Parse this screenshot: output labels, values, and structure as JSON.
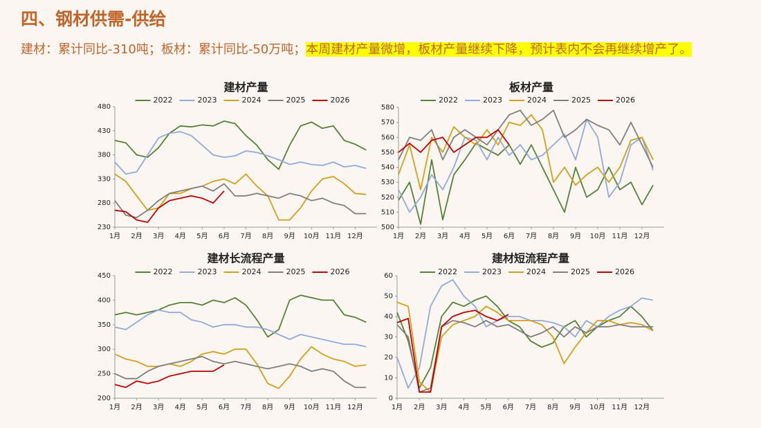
{
  "header": {
    "title": "四、钢材供需-供给",
    "subtitle_plain": "建材：累计同比-310吨；板材：累计同比-50万吨；",
    "subtitle_highlight": "本周建材产量微增，板材产量继续下降，预计表内不会再继续增产了。"
  },
  "chart_data": [
    {
      "type": "line",
      "title": "建材产量",
      "x": [
        1,
        1.5,
        2,
        2.5,
        3,
        3.5,
        4,
        4.5,
        5,
        5.5,
        6,
        6.5,
        7,
        7.5,
        8,
        8.5,
        9,
        9.5,
        10,
        10.5,
        11,
        11.5,
        12,
        12.5
      ],
      "xlim": [
        1,
        13
      ],
      "xticks": [
        {
          "value": 1,
          "label": "1月"
        },
        {
          "value": 2,
          "label": "2月"
        },
        {
          "value": 3,
          "label": "3月"
        },
        {
          "value": 4,
          "label": "4月"
        },
        {
          "value": 5,
          "label": "5月"
        },
        {
          "value": 6,
          "label": "6月"
        },
        {
          "value": 7,
          "label": "7月"
        },
        {
          "value": 8,
          "label": "8月"
        },
        {
          "value": 9,
          "label": "9月"
        },
        {
          "value": 10,
          "label": "10月"
        },
        {
          "value": 11,
          "label": "11月"
        },
        {
          "value": 12,
          "label": "12月"
        }
      ],
      "ylim": [
        230,
        480
      ],
      "yticks": [
        230,
        280,
        330,
        380,
        430,
        480
      ],
      "series": [
        {
          "name": "2022",
          "color": "#548235",
          "values": [
            410,
            405,
            380,
            375,
            395,
            425,
            440,
            438,
            442,
            440,
            450,
            445,
            420,
            400,
            370,
            350,
            400,
            440,
            448,
            435,
            440,
            410,
            402,
            390
          ]
        },
        {
          "name": "2023",
          "color": "#8faadc",
          "values": [
            365,
            340,
            345,
            380,
            415,
            425,
            428,
            420,
            400,
            380,
            375,
            378,
            388,
            385,
            378,
            370,
            360,
            365,
            360,
            358,
            365,
            355,
            358,
            352
          ]
        },
        {
          "name": "2024",
          "color": "#d4a017",
          "values": [
            340,
            325,
            295,
            265,
            270,
            300,
            300,
            310,
            315,
            325,
            330,
            320,
            340,
            315,
            295,
            245,
            245,
            270,
            305,
            330,
            335,
            320,
            300,
            298
          ]
        },
        {
          "name": "2025",
          "color": "#7f7f7f",
          "values": [
            285,
            255,
            250,
            265,
            285,
            300,
            305,
            310,
            315,
            305,
            320,
            295,
            295,
            300,
            295,
            290,
            300,
            295,
            285,
            290,
            280,
            275,
            258,
            258
          ]
        },
        {
          "name": "2026",
          "color": "#c00000",
          "values": [
            265,
            262,
            245,
            240,
            270,
            285,
            290,
            295,
            290,
            280,
            305,
            null,
            null,
            null,
            null,
            null,
            null,
            null,
            null,
            null,
            null,
            null,
            null,
            null
          ]
        }
      ]
    },
    {
      "type": "line",
      "title": "板材产量",
      "x": [
        1,
        1.5,
        2,
        2.5,
        3,
        3.5,
        4,
        4.5,
        5,
        5.5,
        6,
        6.5,
        7,
        7.5,
        8,
        8.5,
        9,
        9.5,
        10,
        10.5,
        11,
        11.5,
        12,
        12.5
      ],
      "xlim": [
        1,
        13
      ],
      "xticks": [
        {
          "value": 1,
          "label": "1月"
        },
        {
          "value": 2,
          "label": "2月"
        },
        {
          "value": 3,
          "label": "3月"
        },
        {
          "value": 4,
          "label": "4月"
        },
        {
          "value": 5,
          "label": "5月"
        },
        {
          "value": 6,
          "label": "6月"
        },
        {
          "value": 7,
          "label": "7月"
        },
        {
          "value": 8,
          "label": "8月"
        },
        {
          "value": 9,
          "label": "9月"
        },
        {
          "value": 10,
          "label": "10月"
        },
        {
          "value": 11,
          "label": "11月"
        },
        {
          "value": 12,
          "label": "12月"
        }
      ],
      "ylim": [
        500,
        580
      ],
      "yticks": [
        500,
        510,
        520,
        530,
        540,
        550,
        560,
        570,
        580
      ],
      "series": [
        {
          "name": "2022",
          "color": "#548235",
          "values": [
            518,
            530,
            502,
            545,
            505,
            535,
            545,
            556,
            552,
            548,
            555,
            542,
            555,
            540,
            525,
            510,
            540,
            520,
            525,
            540,
            525,
            530,
            515,
            528
          ]
        },
        {
          "name": "2023",
          "color": "#8faadc",
          "values": [
            525,
            510,
            520,
            535,
            525,
            540,
            560,
            558,
            545,
            560,
            548,
            555,
            545,
            548,
            555,
            562,
            545,
            572,
            560,
            520,
            530,
            555,
            560,
            538
          ]
        },
        {
          "name": "2024",
          "color": "#d4a017",
          "values": [
            535,
            555,
            525,
            560,
            550,
            567,
            560,
            555,
            565,
            555,
            570,
            568,
            575,
            565,
            530,
            540,
            528,
            535,
            540,
            530,
            540,
            558,
            560,
            545
          ]
        },
        {
          "name": "2025",
          "color": "#7f7f7f",
          "values": [
            545,
            560,
            558,
            565,
            545,
            560,
            565,
            560,
            555,
            565,
            575,
            578,
            568,
            572,
            578,
            560,
            565,
            572,
            568,
            565,
            555,
            570,
            555,
            540
          ]
        },
        {
          "name": "2026",
          "color": "#c00000",
          "values": [
            550,
            556,
            550,
            558,
            560,
            550,
            555,
            560,
            560,
            565,
            555,
            null,
            null,
            null,
            null,
            null,
            null,
            null,
            null,
            null,
            null,
            null,
            null,
            null
          ]
        }
      ]
    },
    {
      "type": "line",
      "title": "建材长流程产量",
      "x": [
        1,
        1.5,
        2,
        2.5,
        3,
        3.5,
        4,
        4.5,
        5,
        5.5,
        6,
        6.5,
        7,
        7.5,
        8,
        8.5,
        9,
        9.5,
        10,
        10.5,
        11,
        11.5,
        12,
        12.5
      ],
      "xlim": [
        1,
        13
      ],
      "xticks": [
        {
          "value": 1,
          "label": "1月"
        },
        {
          "value": 2,
          "label": "2月"
        },
        {
          "value": 3,
          "label": "3月"
        },
        {
          "value": 4,
          "label": "4月"
        },
        {
          "value": 5,
          "label": "5月"
        },
        {
          "value": 6,
          "label": "6月"
        },
        {
          "value": 7,
          "label": "7月"
        },
        {
          "value": 8,
          "label": "8月"
        },
        {
          "value": 9,
          "label": "9月"
        },
        {
          "value": 10,
          "label": "10月"
        },
        {
          "value": 11,
          "label": "11月"
        },
        {
          "value": 12,
          "label": "12月"
        }
      ],
      "ylim": [
        200,
        450
      ],
      "yticks": [
        200,
        250,
        300,
        350,
        400,
        450
      ],
      "series": [
        {
          "name": "2022",
          "color": "#548235",
          "values": [
            370,
            375,
            370,
            375,
            380,
            390,
            395,
            395,
            390,
            400,
            395,
            405,
            390,
            360,
            325,
            340,
            400,
            410,
            405,
            400,
            400,
            370,
            365,
            355
          ]
        },
        {
          "name": "2023",
          "color": "#8faadc",
          "values": [
            345,
            340,
            355,
            370,
            380,
            375,
            375,
            360,
            355,
            345,
            350,
            350,
            345,
            345,
            340,
            330,
            320,
            330,
            325,
            320,
            315,
            310,
            310,
            305
          ]
        },
        {
          "name": "2024",
          "color": "#d4a017",
          "values": [
            290,
            280,
            275,
            265,
            265,
            270,
            265,
            275,
            290,
            295,
            290,
            300,
            300,
            270,
            230,
            220,
            245,
            280,
            305,
            290,
            280,
            275,
            265,
            268
          ]
        },
        {
          "name": "2025",
          "color": "#7f7f7f",
          "values": [
            250,
            240,
            240,
            255,
            265,
            270,
            275,
            280,
            285,
            275,
            270,
            275,
            270,
            265,
            260,
            265,
            270,
            265,
            255,
            260,
            255,
            235,
            222,
            222
          ]
        },
        {
          "name": "2026",
          "color": "#c00000",
          "values": [
            228,
            222,
            235,
            230,
            235,
            245,
            250,
            255,
            255,
            255,
            268,
            null,
            null,
            null,
            null,
            null,
            null,
            null,
            null,
            null,
            null,
            null,
            null,
            null
          ]
        }
      ]
    },
    {
      "type": "line",
      "title": "建材短流程产量",
      "x": [
        1,
        1.5,
        2,
        2.5,
        3,
        3.5,
        4,
        4.5,
        5,
        5.5,
        6,
        6.5,
        7,
        7.5,
        8,
        8.5,
        9,
        9.5,
        10,
        10.5,
        11,
        11.5,
        12,
        12.5
      ],
      "xlim": [
        1,
        13
      ],
      "xticks": [
        {
          "value": 1,
          "label": "1月"
        },
        {
          "value": 2,
          "label": "2月"
        },
        {
          "value": 3,
          "label": "3月"
        },
        {
          "value": 4,
          "label": "4月"
        },
        {
          "value": 5,
          "label": "5月"
        },
        {
          "value": 6,
          "label": "6月"
        },
        {
          "value": 7,
          "label": "7月"
        },
        {
          "value": 8,
          "label": "8月"
        },
        {
          "value": 9,
          "label": "9月"
        },
        {
          "value": 10,
          "label": "10月"
        },
        {
          "value": 11,
          "label": "11月"
        },
        {
          "value": 12,
          "label": "12月"
        }
      ],
      "ylim": [
        0,
        60
      ],
      "yticks": [
        0,
        10,
        20,
        30,
        40,
        50,
        60
      ],
      "series": [
        {
          "name": "2022",
          "color": "#548235",
          "values": [
            42,
            28,
            5,
            15,
            40,
            47,
            45,
            48,
            50,
            45,
            38,
            35,
            28,
            25,
            27,
            35,
            38,
            30,
            35,
            38,
            40,
            45,
            40,
            33
          ]
        },
        {
          "name": "2023",
          "color": "#8faadc",
          "values": [
            20,
            5,
            15,
            45,
            55,
            58,
            50,
            45,
            35,
            38,
            40,
            40,
            38,
            38,
            37,
            35,
            30,
            38,
            35,
            40,
            43,
            45,
            49,
            48
          ]
        },
        {
          "name": "2024",
          "color": "#d4a017",
          "values": [
            47,
            45,
            8,
            3,
            30,
            36,
            38,
            40,
            45,
            42,
            38,
            38,
            38,
            36,
            30,
            17,
            25,
            32,
            38,
            38,
            36,
            37,
            36,
            33
          ]
        },
        {
          "name": "2025",
          "color": "#7f7f7f",
          "values": [
            36,
            30,
            3,
            5,
            35,
            38,
            37,
            35,
            38,
            35,
            36,
            33,
            30,
            32,
            35,
            30,
            35,
            32,
            35,
            35,
            36,
            35,
            35,
            35
          ]
        },
        {
          "name": "2026",
          "color": "#c00000",
          "values": [
            37,
            39,
            3,
            3,
            35,
            40,
            42,
            43,
            40,
            38,
            41,
            null,
            null,
            null,
            null,
            null,
            null,
            null,
            null,
            null,
            null,
            null,
            null,
            null
          ]
        }
      ]
    }
  ]
}
